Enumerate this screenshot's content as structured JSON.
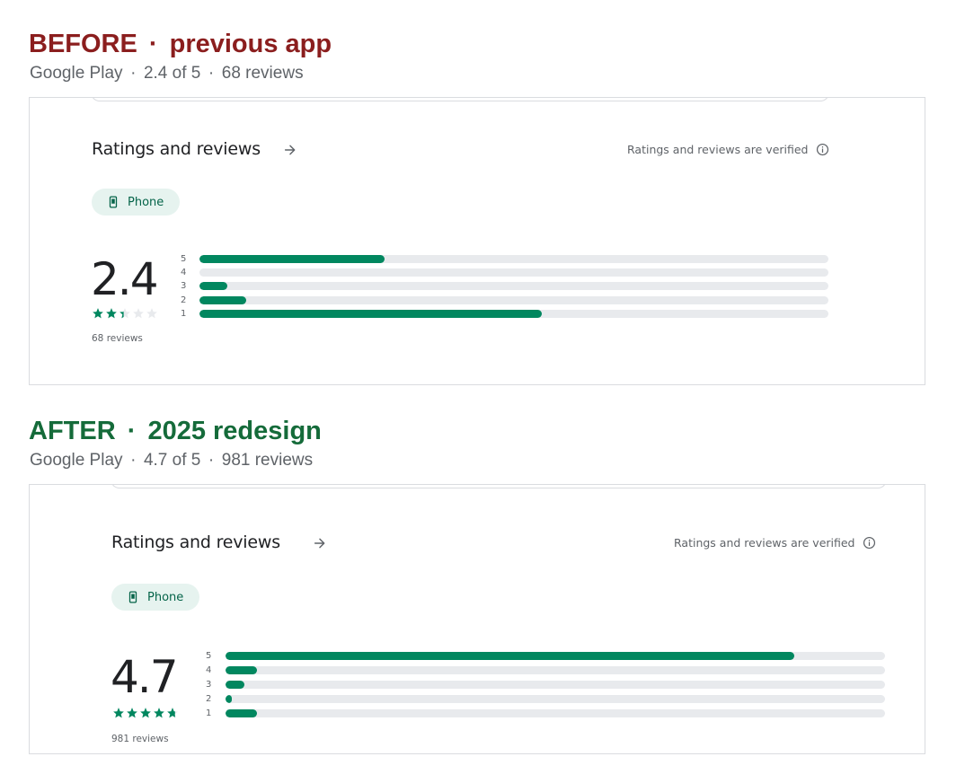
{
  "before": {
    "heading": {
      "label": "BEFORE",
      "separator": "·",
      "subtitle": "previous app",
      "color": "#8b1e1e"
    },
    "meta": {
      "store": "Google Play",
      "rating_text": "2.4 of 5",
      "reviews_text": "68 reviews",
      "separator": "·"
    },
    "card": {
      "title": "Ratings and reviews",
      "verified_text": "Ratings and reviews are verified",
      "chip_label": "Phone",
      "rating": "2.4",
      "rating_value": 2.4,
      "review_count": "68 reviews",
      "histogram": [
        {
          "label": "5",
          "fraction": 0.294
        },
        {
          "label": "4",
          "fraction": 0.0
        },
        {
          "label": "3",
          "fraction": 0.044
        },
        {
          "label": "2",
          "fraction": 0.074
        },
        {
          "label": "1",
          "fraction": 0.544
        }
      ]
    }
  },
  "after": {
    "heading": {
      "label": "AFTER",
      "separator": "·",
      "subtitle": "2025 redesign",
      "color": "#156b3a"
    },
    "meta": {
      "store": "Google Play",
      "rating_text": "4.7 of 5",
      "reviews_text": "981 reviews",
      "separator": "·"
    },
    "card": {
      "title": "Ratings and reviews",
      "verified_text": "Ratings and reviews are verified",
      "chip_label": "Phone",
      "rating": "4.7",
      "rating_value": 4.7,
      "review_count": "981 reviews",
      "histogram": [
        {
          "label": "5",
          "fraction": 0.862
        },
        {
          "label": "4",
          "fraction": 0.048
        },
        {
          "label": "3",
          "fraction": 0.029
        },
        {
          "label": "2",
          "fraction": 0.01
        },
        {
          "label": "1",
          "fraction": 0.048
        }
      ]
    }
  },
  "colors": {
    "accent": "#01875f",
    "track": "#e8eaed",
    "chip_bg": "#e6f3ef",
    "chip_text": "#056449",
    "star_empty": "#e8eaed"
  },
  "icons": {
    "arrow": "arrow-right-icon",
    "info": "info-icon",
    "phone": "phone-icon",
    "star": "star-icon"
  }
}
